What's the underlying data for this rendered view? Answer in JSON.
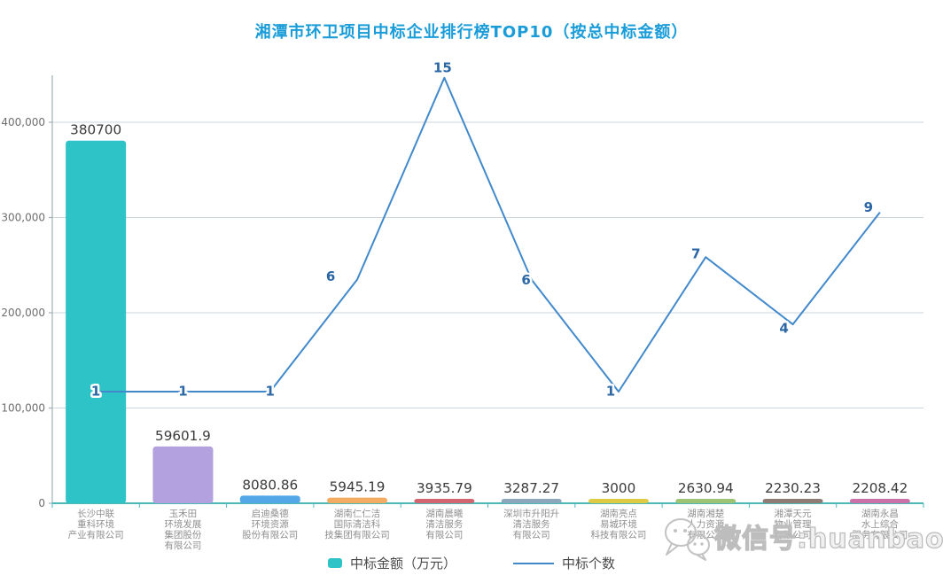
{
  "title": "湘潭市环卫项目中标企业排行榜TOP10（按总中标金额）",
  "watermark": {
    "icon": "wechat-icon",
    "text": "微信号:huanbaoq"
  },
  "legend": {
    "bar": {
      "label": "中标金额（万元）",
      "color": "#2EC3C7"
    },
    "line": {
      "label": "中标个数",
      "color": "#4289CB"
    }
  },
  "colors": {
    "title": "#199CD8",
    "axis_line": "#9FB0B5",
    "baseline": "#49B9BB",
    "gridline": "#CCD6DB",
    "bar_label": "#3B3B3B",
    "line_label": "#2B67A5",
    "tick_label": "#6E6E6E",
    "category_label": "#8F8F8F",
    "line": "#4289CB"
  },
  "chart_data": {
    "type": "combo",
    "title": "湘潭市环卫项目中标企业排行榜TOP10（按总中标金额）",
    "categories": [
      [
        "长沙中联",
        "重科环境",
        "产业有限公司"
      ],
      [
        "玉禾田",
        "环境发展",
        "集团股份",
        "有限公司"
      ],
      [
        "启迪桑德",
        "环境资源",
        "股份有限公司"
      ],
      [
        "湖南仁仁洁",
        "国际清洁科",
        "技集团有限公司"
      ],
      [
        "湖南晨曦",
        "清洁服务",
        "有限公司"
      ],
      [
        "深圳市升阳升",
        "清洁服务",
        "有限公司"
      ],
      [
        "湖南亮点",
        "易城环境",
        "科技有限公司"
      ],
      [
        "湖南湘楚",
        "人力资源",
        "有限公司"
      ],
      [
        "湘潭天元",
        "物业管理",
        "有限公司"
      ],
      [
        "湖南永昌",
        "水上综合",
        "服务有限公司"
      ]
    ],
    "series": [
      {
        "name": "中标金额（万元）",
        "type": "bar",
        "values": [
          380700,
          59601.9,
          8080.86,
          5945.19,
          3935.79,
          3287.27,
          3000,
          2630.94,
          2230.23,
          2208.42
        ],
        "labels": [
          "380700",
          "59601.9",
          "8080.86",
          "5945.19",
          "3935.79",
          "3287.27",
          "3000",
          "2630.94",
          "2230.23",
          "2208.42"
        ],
        "colors": [
          "#2EC3C7",
          "#B3A0DE",
          "#54A7E6",
          "#F4AC63",
          "#D26570",
          "#8CA6BC",
          "#DECB43",
          "#9EC373",
          "#8E7C74",
          "#CB70A9"
        ]
      },
      {
        "name": "中标个数",
        "type": "line",
        "values": [
          1,
          1,
          1,
          6,
          15,
          6,
          1,
          7,
          4,
          9
        ],
        "labels": [
          "1",
          "1",
          "1",
          "6",
          "15",
          "6",
          "1",
          "7",
          "4",
          "9"
        ],
        "color": "#4289CB"
      }
    ],
    "primary_y": {
      "ticks": [
        0,
        100000,
        200000,
        300000,
        400000
      ],
      "tick_labels": [
        "0",
        "100,000",
        "200,000",
        "300,000",
        "400,000"
      ],
      "lim": [
        0,
        450000
      ]
    },
    "secondary_y": {
      "visible": false,
      "max_value_plotted": 15
    },
    "grid": "horizontal",
    "legend_position": "bottom"
  }
}
